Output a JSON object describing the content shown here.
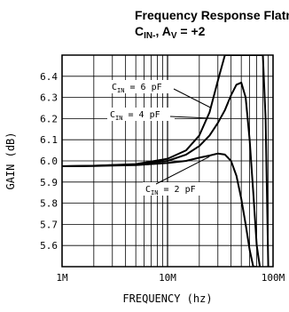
{
  "chart_data": {
    "type": "line",
    "title_line1": "Frequency Response Flatness vs",
    "title_line2_parts": [
      "C",
      "IN-",
      ", A",
      "V",
      " = +2"
    ],
    "xlabel": "FREQUENCY (hz)",
    "ylabel": "GAIN (dB)",
    "xscale": "log",
    "xlim": [
      1000000,
      100000000
    ],
    "ylim": [
      5.5,
      6.5
    ],
    "grid": true,
    "x_ticks": [
      {
        "value": 1000000,
        "label": "1M"
      },
      {
        "value": 10000000,
        "label": "10M"
      },
      {
        "value": 100000000,
        "label": "100M"
      }
    ],
    "y_ticks": [
      {
        "value": 5.6,
        "label": "5.6"
      },
      {
        "value": 5.7,
        "label": "5.7"
      },
      {
        "value": 5.8,
        "label": "5.8"
      },
      {
        "value": 5.9,
        "label": "5.9"
      },
      {
        "value": 6.0,
        "label": "6.0"
      },
      {
        "value": 6.1,
        "label": "6.1"
      },
      {
        "value": 6.2,
        "label": "6.2"
      },
      {
        "value": 6.3,
        "label": "6.3"
      },
      {
        "value": 6.4,
        "label": "6.4"
      }
    ],
    "series": [
      {
        "name": "CIN = 6 pF",
        "label_parts": [
          "C",
          "IN",
          " = 6 pF"
        ],
        "x": [
          1000000,
          2000000,
          5000000,
          10000000,
          15000000,
          20000000,
          25000000,
          30000000,
          35000000,
          40000000,
          45000000,
          50000000,
          55000000,
          60000000,
          65000000,
          70000000,
          75000000,
          80000000,
          85000000,
          90000000
        ],
        "y": [
          5.975,
          5.977,
          5.985,
          6.01,
          6.05,
          6.12,
          6.23,
          6.38,
          6.5,
          6.5,
          6.5,
          6.5,
          6.5,
          6.5,
          6.5,
          6.5,
          6.5,
          6.5,
          6.2,
          5.5
        ]
      },
      {
        "name": "CIN = 4 pF",
        "label_parts": [
          "C",
          "IN",
          " = 4 pF"
        ],
        "x": [
          1000000,
          2000000,
          5000000,
          10000000,
          15000000,
          20000000,
          25000000,
          30000000,
          35000000,
          40000000,
          45000000,
          50000000,
          55000000,
          60000000,
          65000000,
          70000000,
          75000000
        ],
        "y": [
          5.975,
          5.977,
          5.983,
          6.0,
          6.03,
          6.07,
          6.12,
          6.18,
          6.24,
          6.31,
          6.36,
          6.37,
          6.3,
          6.1,
          5.85,
          5.6,
          5.5
        ]
      },
      {
        "name": "CIN = 2 pF",
        "label_parts": [
          "C",
          "IN",
          " = 2 pF"
        ],
        "x": [
          1000000,
          2000000,
          5000000,
          10000000,
          15000000,
          20000000,
          25000000,
          30000000,
          35000000,
          40000000,
          45000000,
          50000000,
          55000000,
          60000000,
          65000000,
          70000000
        ],
        "y": [
          5.975,
          5.976,
          5.98,
          5.99,
          6.0,
          6.015,
          6.025,
          6.035,
          6.03,
          6.0,
          5.93,
          5.82,
          5.7,
          5.58,
          5.5,
          5.5
        ]
      }
    ]
  }
}
